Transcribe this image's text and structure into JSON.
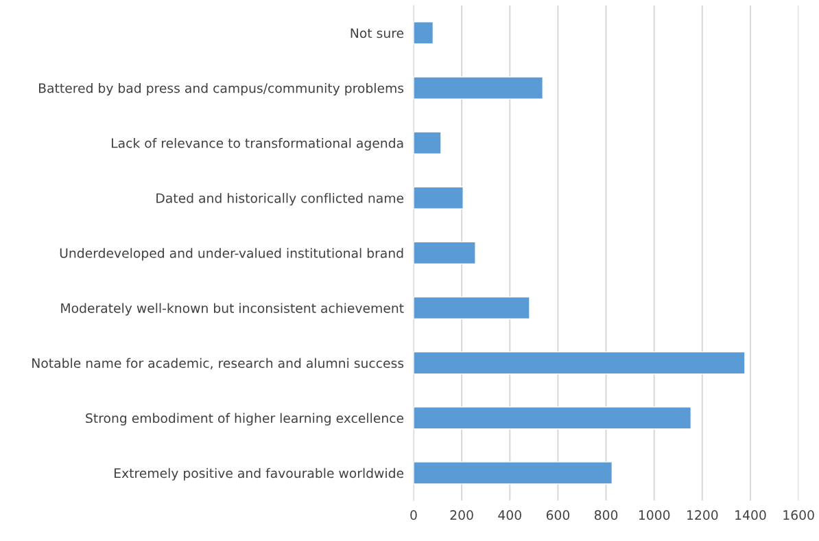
{
  "chart_data": {
    "type": "bar",
    "orientation": "horizontal",
    "categories": [
      "Not sure",
      "Battered by bad press and campus/community problems",
      "Lack of relevance to transformational agenda",
      "Dated and historically conflicted name",
      "Underdeveloped and under-valued institutional brand",
      "Moderately well-known but inconsistent achievement",
      "Notable name for academic, research and alumni success",
      "Strong embodiment of higher learning excellence",
      "Extremely positive and favourable worldwide"
    ],
    "values": [
      81,
      537,
      114,
      206,
      257,
      482,
      1377,
      1153,
      825
    ],
    "color": "#5b9bd5",
    "xlim": [
      0,
      1600
    ],
    "xticks": [
      0,
      200,
      400,
      600,
      800,
      1000,
      1200,
      1400,
      1600
    ],
    "grid": "x"
  }
}
